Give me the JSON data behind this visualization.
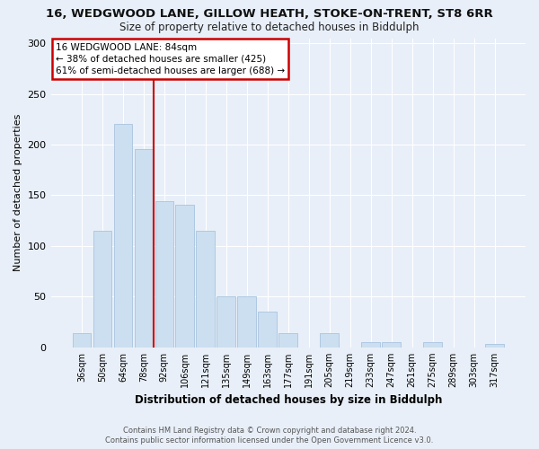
{
  "title_line1": "16, WEDGWOOD LANE, GILLOW HEATH, STOKE-ON-TRENT, ST8 6RR",
  "title_line2": "Size of property relative to detached houses in Biddulph",
  "xlabel": "Distribution of detached houses by size in Biddulph",
  "ylabel": "Number of detached properties",
  "categories": [
    "36sqm",
    "50sqm",
    "64sqm",
    "78sqm",
    "92sqm",
    "106sqm",
    "121sqm",
    "135sqm",
    "149sqm",
    "163sqm",
    "177sqm",
    "191sqm",
    "205sqm",
    "219sqm",
    "233sqm",
    "247sqm",
    "261sqm",
    "275sqm",
    "289sqm",
    "303sqm",
    "317sqm"
  ],
  "values": [
    14,
    115,
    220,
    196,
    144,
    141,
    115,
    50,
    50,
    35,
    14,
    0,
    14,
    0,
    5,
    5,
    0,
    5,
    0,
    0,
    3
  ],
  "bar_color": "#ccdff0",
  "bar_edge_color": "#a8c4df",
  "vline_x": 3.5,
  "vline_color": "#cc0000",
  "annotation_line1": "16 WEDGWOOD LANE: 84sqm",
  "annotation_line2": "← 38% of detached houses are smaller (425)",
  "annotation_line3": "61% of semi-detached houses are larger (688) →",
  "annotation_box_facecolor": "#ffffff",
  "annotation_box_edgecolor": "#cc0000",
  "ylim": [
    0,
    305
  ],
  "yticks": [
    0,
    50,
    100,
    150,
    200,
    250,
    300
  ],
  "bg_color": "#e8eff8",
  "grid_color": "#ffffff",
  "footer_line1": "Contains HM Land Registry data © Crown copyright and database right 2024.",
  "footer_line2": "Contains public sector information licensed under the Open Government Licence v3.0."
}
